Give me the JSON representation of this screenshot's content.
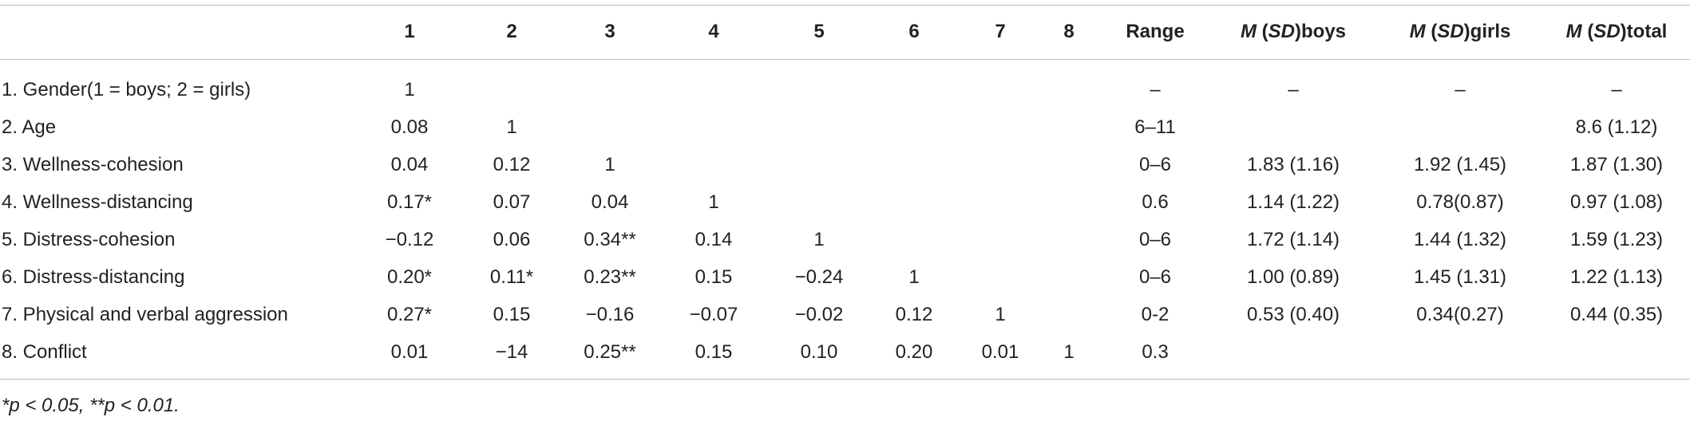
{
  "table": {
    "header": [
      null,
      "1",
      "2",
      "3",
      "4",
      "5",
      "6",
      "7",
      "8",
      "Range",
      [
        "M",
        " (",
        "SD",
        ")boys"
      ],
      [
        "M",
        " (",
        "SD",
        ")girls"
      ],
      [
        "M",
        " (",
        "SD",
        ")total"
      ]
    ],
    "rows": [
      [
        "1. Gender(1 = boys; 2 = girls)",
        "1",
        null,
        null,
        null,
        null,
        null,
        null,
        null,
        "–",
        "–",
        "–",
        "–"
      ],
      [
        "2. Age",
        "0.08",
        "1",
        null,
        null,
        null,
        null,
        null,
        null,
        "6–11",
        null,
        null,
        "8.6 (1.12)"
      ],
      [
        "3. Wellness-cohesion",
        "0.04",
        "0.12",
        "1",
        null,
        null,
        null,
        null,
        null,
        "0–6",
        "1.83 (1.16)",
        "1.92 (1.45)",
        "1.87 (1.30)"
      ],
      [
        "4. Wellness-distancing",
        "0.17*",
        "0.07",
        "0.04",
        "1",
        null,
        null,
        null,
        null,
        "0.6",
        "1.14 (1.22)",
        "0.78(0.87)",
        "0.97 (1.08)"
      ],
      [
        "5. Distress-cohesion",
        "−0.12",
        "0.06",
        "0.34**",
        "0.14",
        "1",
        null,
        null,
        null,
        "0–6",
        "1.72 (1.14)",
        "1.44 (1.32)",
        "1.59 (1.23)"
      ],
      [
        "6. Distress-distancing",
        "0.20*",
        "0.11*",
        "0.23**",
        "0.15",
        "−0.24",
        "1",
        null,
        null,
        "0–6",
        "1.00 (0.89)",
        "1.45 (1.31)",
        "1.22 (1.13)"
      ],
      [
        "7. Physical and verbal aggression",
        "0.27*",
        "0.15",
        "−0.16",
        "−0.07",
        "−0.02",
        "0.12",
        "1",
        null,
        "0-2",
        "0.53 (0.40)",
        "0.34(0.27)",
        "0.44 (0.35)"
      ],
      [
        "8. Conflict",
        "0.01",
        "−14",
        "0.25**",
        "0.15",
        "0.10",
        "0.20",
        "0.01",
        "1",
        "0.3",
        null,
        null,
        null
      ]
    ],
    "footnote": "*p < 0.05, **p < 0.01."
  }
}
